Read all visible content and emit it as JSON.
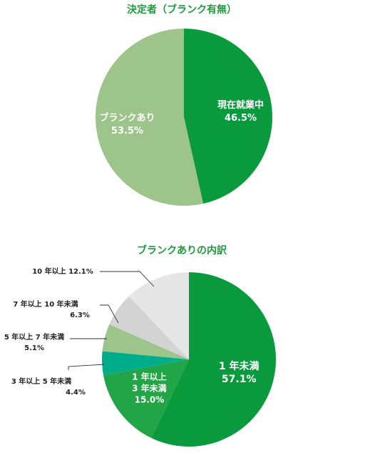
{
  "colors": {
    "title": "#1f9a3e",
    "dark_green": "#0a9a3e",
    "light_green": "#9dc48a",
    "mid_green": "#22a546",
    "teal": "#00ad8a",
    "sage": "#9dc48a",
    "gray": "#d3d3d3",
    "light_gray": "#e6e6e6",
    "leader": "#333333"
  },
  "chart_data": [
    {
      "type": "pie",
      "title": "決定者（ブランク有無）",
      "slices": [
        {
          "label": "現在就業中",
          "value": 46.5,
          "value_label": "46.5%",
          "color": "#0a9a3e"
        },
        {
          "label": "ブランクあり",
          "value": 53.5,
          "value_label": "53.5%",
          "color": "#9dc48a"
        }
      ]
    },
    {
      "type": "pie",
      "title": "ブランクありの内訳",
      "slices": [
        {
          "label": "1 年未満",
          "value": 57.1,
          "value_label": "57.1%",
          "color": "#0a9a3e",
          "label_lines": [
            "1 年未満"
          ],
          "inside": true
        },
        {
          "label": "1 年以上 3 年未満",
          "value": 15.0,
          "value_label": "15.0%",
          "color": "#22a546",
          "label_lines": [
            "1 年以上",
            "3 年未満"
          ],
          "inside": true
        },
        {
          "label": "3 年以上 5 年未満",
          "value": 4.4,
          "value_label": "4.4%",
          "color": "#00ad8a",
          "label_lines": [
            "3 年以上 5 年未満"
          ],
          "inside": false
        },
        {
          "label": "5 年以上 7 年未満",
          "value": 5.1,
          "value_label": "5.1%",
          "color": "#9dc48a",
          "label_lines": [
            "5 年以上 7 年未満"
          ],
          "inside": false
        },
        {
          "label": "7 年以上 10 年未満",
          "value": 6.3,
          "value_label": "6.3%",
          "color": "#d3d3d3",
          "label_lines": [
            "7 年以上 10 年未満"
          ],
          "inside": false
        },
        {
          "label": "10 年以上",
          "value": 12.1,
          "value_label": "12.1%",
          "color": "#e6e6e6",
          "label_lines": [
            "10 年以上"
          ],
          "inside": false
        }
      ]
    }
  ]
}
